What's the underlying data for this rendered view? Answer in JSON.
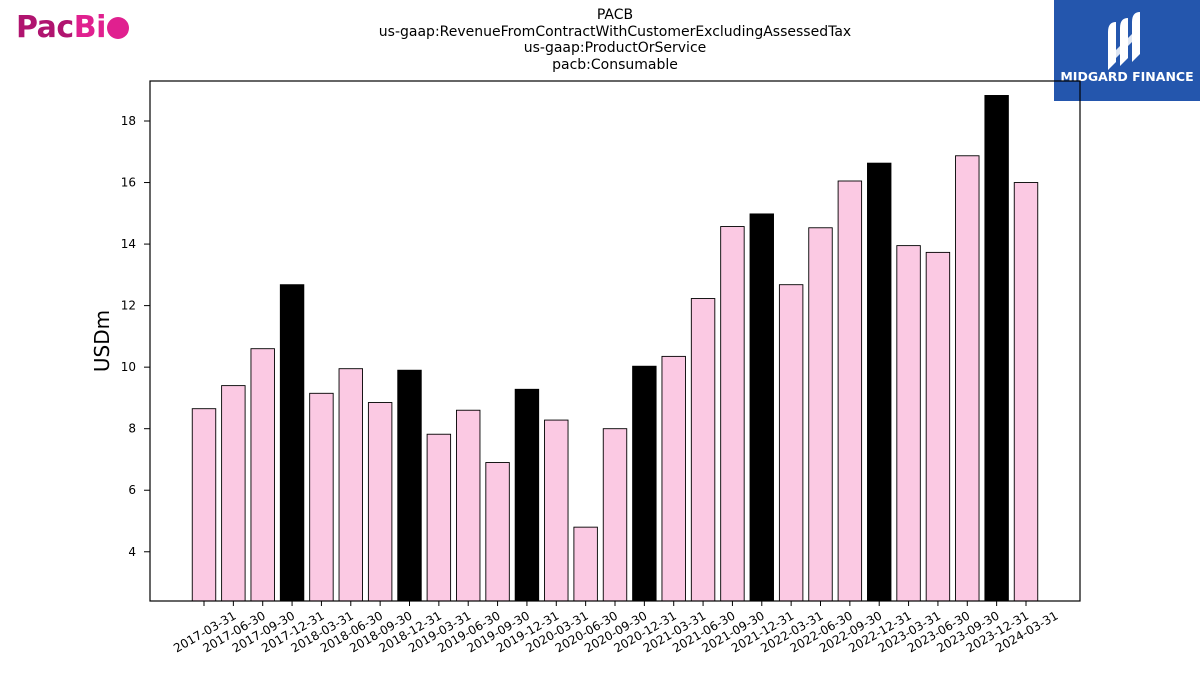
{
  "logo_left": {
    "part1": "Pac",
    "part2": "Bi"
  },
  "logo_right": {
    "text": "MIDGARD FINANCE"
  },
  "chart_data": {
    "type": "bar",
    "title_lines": [
      "PACB",
      "us-gaap:RevenueFromContractWithCustomerExcludingAssessedTax",
      "us-gaap:ProductOrService",
      "pacb:Consumable"
    ],
    "xlabel": "",
    "ylabel": "USDm",
    "ylim": [
      2.4,
      19.3
    ],
    "yticks": [
      4,
      6,
      8,
      10,
      12,
      14,
      16,
      18
    ],
    "grid": false,
    "categories": [
      "2017-03-31",
      "2017-06-30",
      "2017-09-30",
      "2017-12-31",
      "2018-03-31",
      "2018-06-30",
      "2018-09-30",
      "2018-12-31",
      "2019-03-31",
      "2019-06-30",
      "2019-09-30",
      "2019-12-31",
      "2020-03-31",
      "2020-06-30",
      "2020-09-30",
      "2020-12-31",
      "2021-03-31",
      "2021-06-30",
      "2021-09-30",
      "2021-12-31",
      "2022-03-31",
      "2022-06-30",
      "2022-09-30",
      "2022-12-31",
      "2023-03-31",
      "2023-06-30",
      "2023-09-30",
      "2023-12-31",
      "2024-03-31"
    ],
    "values": [
      8.65,
      9.4,
      10.6,
      12.68,
      9.15,
      9.95,
      8.85,
      9.9,
      7.82,
      8.6,
      6.9,
      9.28,
      8.28,
      4.8,
      8.0,
      10.03,
      10.35,
      12.23,
      14.57,
      14.98,
      12.68,
      14.53,
      16.05,
      16.63,
      13.95,
      13.73,
      16.87,
      18.83,
      16.0
    ],
    "colors": {
      "quarter": "#fbc9e3",
      "year_end": "#000000",
      "edge": "#000000"
    }
  }
}
